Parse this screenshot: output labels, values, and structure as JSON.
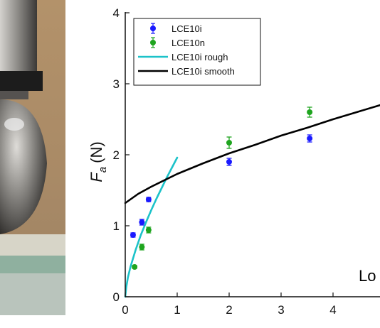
{
  "chart_data": {
    "type": "scatter",
    "ylabel": {
      "main": "F",
      "subscript": "a",
      "unit": "(N)"
    },
    "xlim": [
      0,
      5
    ],
    "ylim": [
      0,
      4
    ],
    "x_ticks": [
      "0",
      "1",
      "2",
      "3",
      "4"
    ],
    "y_ticks": [
      "0",
      "1",
      "2",
      "3",
      "4"
    ],
    "grid": false,
    "legend": {
      "position": "top-left"
    },
    "overlay_text": "Lo",
    "series": [
      {
        "name": "LCE10i",
        "kind": "points",
        "color": "#1a1aff",
        "points": [
          [
            0.15,
            0.87
          ],
          [
            0.32,
            1.05
          ],
          [
            0.45,
            1.37
          ],
          [
            2.0,
            1.9
          ],
          [
            3.55,
            2.23
          ]
        ],
        "errors": [
          0.03,
          0.04,
          0.03,
          0.05,
          0.05
        ]
      },
      {
        "name": "LCE10n",
        "kind": "points",
        "color": "#1fa51f",
        "points": [
          [
            0.18,
            0.42
          ],
          [
            0.32,
            0.7
          ],
          [
            0.45,
            0.94
          ],
          [
            2.0,
            2.17
          ],
          [
            3.55,
            2.6
          ]
        ],
        "errors": [
          0.02,
          0.04,
          0.04,
          0.08,
          0.07
        ]
      },
      {
        "name": "LCE10i rough",
        "kind": "line",
        "color": "#1cc2c9",
        "points": [
          [
            0,
            0
          ],
          [
            0.02,
            0.14
          ],
          [
            0.05,
            0.27
          ],
          [
            0.1,
            0.42
          ],
          [
            0.2,
            0.66
          ],
          [
            0.3,
            0.87
          ],
          [
            0.4,
            1.05
          ],
          [
            0.5,
            1.22
          ],
          [
            0.6,
            1.38
          ],
          [
            0.7,
            1.53
          ],
          [
            0.8,
            1.68
          ],
          [
            0.9,
            1.82
          ],
          [
            1.0,
            1.96
          ]
        ]
      },
      {
        "name": "LCE10i smooth",
        "kind": "line",
        "color": "#000000",
        "points": [
          [
            0,
            1.32
          ],
          [
            0.25,
            1.45
          ],
          [
            0.5,
            1.55
          ],
          [
            1.0,
            1.73
          ],
          [
            1.5,
            1.88
          ],
          [
            2.0,
            2.02
          ],
          [
            2.5,
            2.14
          ],
          [
            3.0,
            2.27
          ],
          [
            3.5,
            2.38
          ],
          [
            4.0,
            2.5
          ],
          [
            4.5,
            2.61
          ],
          [
            5.0,
            2.72
          ]
        ]
      }
    ]
  }
}
